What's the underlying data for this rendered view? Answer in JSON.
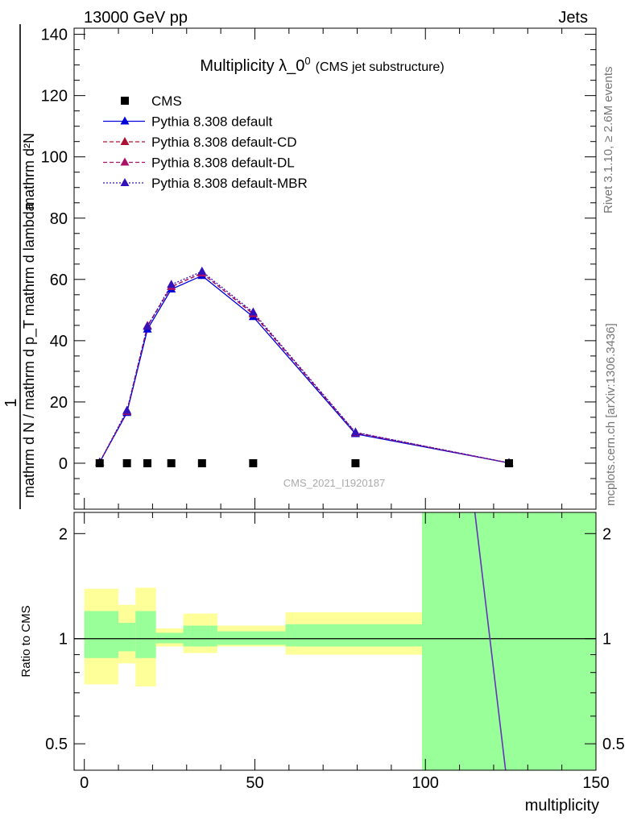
{
  "header": {
    "left": "13000 GeV pp",
    "right": "Jets"
  },
  "side": {
    "rivet": "Rivet 3.1.10, ≥ 2.6M events",
    "source": "mcplots.cern.ch [arXiv:1306.3436]"
  },
  "chart_data": [
    {
      "type": "line",
      "title": "Multiplicity λ_0",
      "title_sup": "0",
      "subtitle": "(CMS jet substructure)",
      "watermark": "CMS_2021_I1920187",
      "ylabel_numerator": "1",
      "ylabel_denominator": "mathrm d N / mathrm d p_T mathrm d lambda",
      "ylabel_right": "mathrm d²N",
      "ylabel_right_lower": "mathrm d p_T mathrm d lambda",
      "xlim": [
        -3,
        150
      ],
      "ylim": [
        -15,
        142
      ],
      "y_ticks": [
        0,
        20,
        40,
        60,
        80,
        100,
        120,
        140
      ],
      "legend_position": "top-left",
      "data": {
        "name": "CMS",
        "x": [
          4.5,
          12.5,
          18.5,
          25.5,
          34.5,
          49.5,
          79.5,
          124.5
        ],
        "y": [
          0,
          0,
          0,
          0,
          0,
          0,
          0,
          0
        ]
      },
      "series": [
        {
          "name": "Pythia 8.308 default",
          "style": "solid",
          "color": "#0000dd",
          "x": [
            4.5,
            12.5,
            18.5,
            25.5,
            34.5,
            49.5,
            79.5,
            124.5
          ],
          "y": [
            0.3,
            16.5,
            43.7,
            56.8,
            61.2,
            47.8,
            9.6,
            0.1
          ]
        },
        {
          "name": "Pythia 8.308 default-CD",
          "style": "dash",
          "color": "#aa1133",
          "x": [
            4.5,
            12.5,
            18.5,
            25.5,
            34.5,
            49.5,
            79.5,
            124.5
          ],
          "y": [
            0.3,
            16.9,
            44.7,
            57.6,
            62.1,
            48.7,
            9.9,
            0.1
          ]
        },
        {
          "name": "Pythia 8.308 default-DL",
          "style": "dash",
          "color": "#aa1166",
          "x": [
            4.5,
            12.5,
            18.5,
            25.5,
            34.5,
            49.5,
            79.5,
            124.5
          ],
          "y": [
            0.3,
            16.9,
            44.9,
            57.6,
            62.0,
            48.9,
            10.0,
            0.1
          ]
        },
        {
          "name": "Pythia 8.308 default-MBR",
          "style": "dot",
          "color": "#3311bb",
          "x": [
            4.5,
            12.5,
            18.5,
            25.5,
            34.5,
            49.5,
            79.5,
            124.5
          ],
          "y": [
            0.3,
            17.2,
            44.6,
            58.3,
            62.6,
            49.3,
            10.1,
            0.1
          ]
        }
      ]
    },
    {
      "type": "area",
      "ylabel": "Ratio to CMS",
      "xlabel": "multiplicity",
      "y_scale": "log",
      "ylim": [
        0.42,
        2.3
      ],
      "xlim": [
        -3,
        150
      ],
      "x_ticks": [
        0,
        50,
        100,
        150
      ],
      "y_ticks": [
        0.5,
        1,
        2
      ],
      "bands": [
        {
          "x": [
            0,
            10
          ],
          "inner": [
            0.88,
            1.2
          ],
          "outer": [
            0.74,
            1.39
          ]
        },
        {
          "x": [
            10,
            15
          ],
          "inner": [
            0.92,
            1.11
          ],
          "outer": [
            0.85,
            1.25
          ]
        },
        {
          "x": [
            15,
            21
          ],
          "inner": [
            0.88,
            1.2
          ],
          "outer": [
            0.73,
            1.4
          ]
        },
        {
          "x": [
            21,
            29
          ],
          "inner": [
            0.97,
            1.04
          ],
          "outer": [
            0.95,
            1.07
          ]
        },
        {
          "x": [
            29,
            39
          ],
          "inner": [
            0.95,
            1.09
          ],
          "outer": [
            0.91,
            1.18
          ]
        },
        {
          "x": [
            39,
            59
          ],
          "inner": [
            0.96,
            1.05
          ],
          "outer": [
            0.95,
            1.09
          ]
        },
        {
          "x": [
            59,
            99
          ],
          "inner": [
            0.95,
            1.1
          ],
          "outer": [
            0.9,
            1.19
          ]
        },
        {
          "x": [
            99,
            150
          ],
          "inner": [
            0.1,
            10.0
          ],
          "outer": [
            0.1,
            10.0
          ]
        }
      ],
      "colors": {
        "inner": "#99ff99",
        "outer": "#ffff99"
      },
      "ratio_line": {
        "x": [
          114.5,
          123.5
        ],
        "y": [
          2.3,
          0.42
        ]
      }
    }
  ]
}
